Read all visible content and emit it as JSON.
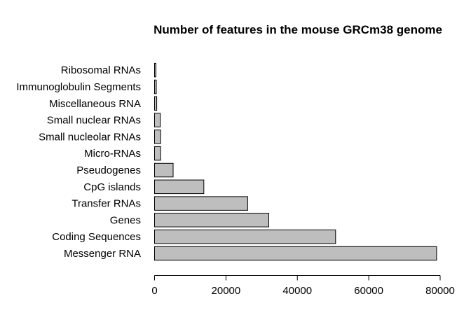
{
  "chart_data": {
    "type": "bar",
    "orientation": "horizontal",
    "title": "Number of features in the mouse GRCm38 genome",
    "xlabel": "",
    "ylabel": "",
    "categories": [
      "Messenger RNA",
      "Coding Sequences",
      "Genes",
      "Transfer RNAs",
      "CpG islands",
      "Pseudogenes",
      "Micro-RNAs",
      "Small nucleolar RNAs",
      "Small nuclear RNAs",
      "Miscellaneous RNA",
      "Immunoglobulin Segments",
      "Ribosomal RNAs"
    ],
    "values": [
      79000,
      50700,
      32000,
      26100,
      13800,
      5200,
      1700,
      1700,
      1600,
      600,
      500,
      400
    ],
    "xlim": [
      0,
      80000
    ],
    "xticks": [
      0,
      20000,
      40000,
      60000,
      80000
    ],
    "xtick_labels": [
      "0",
      "20000",
      "40000",
      "60000",
      "80000"
    ],
    "grid": false,
    "bar_fill": "#bebebe",
    "bar_stroke": "#000000"
  }
}
